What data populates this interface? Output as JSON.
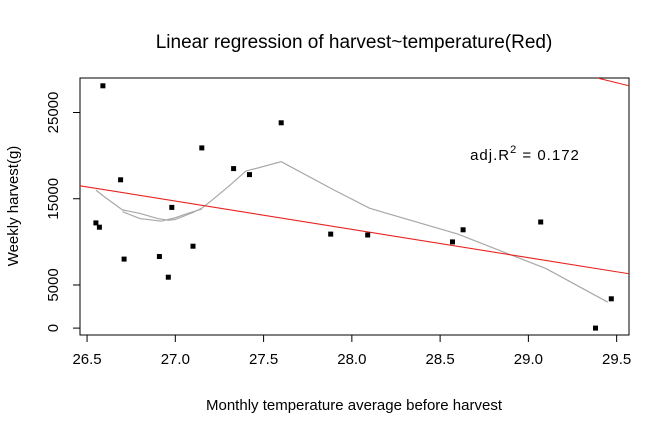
{
  "chart_data": {
    "type": "scatter",
    "title": "Linear regression of harvest~temperature(Red)",
    "xlabel": "Monthly temperature average before harvest",
    "ylabel": "Weekly harvest(g)",
    "xlim": [
      26.46,
      29.57
    ],
    "ylim": [
      -800,
      29000
    ],
    "xticks": [
      "26.5",
      "27.0",
      "27.5",
      "28.0",
      "28.5",
      "29.0",
      "29.5"
    ],
    "yticks": [
      "0",
      "5000",
      "15000",
      "25000"
    ],
    "grid": false,
    "annotation": {
      "prefix": "adj.R",
      "superscript": "2",
      "suffix": " = 0.172",
      "x": 28.67,
      "y": 19500
    },
    "points": [
      {
        "x": 26.55,
        "y": 12200
      },
      {
        "x": 26.57,
        "y": 11700
      },
      {
        "x": 26.59,
        "y": 28100
      },
      {
        "x": 26.69,
        "y": 17200
      },
      {
        "x": 26.71,
        "y": 8000
      },
      {
        "x": 26.91,
        "y": 8300
      },
      {
        "x": 26.96,
        "y": 5900
      },
      {
        "x": 26.98,
        "y": 14000
      },
      {
        "x": 27.1,
        "y": 9500
      },
      {
        "x": 27.15,
        "y": 20900
      },
      {
        "x": 27.33,
        "y": 18500
      },
      {
        "x": 27.42,
        "y": 17800
      },
      {
        "x": 27.6,
        "y": 23800
      },
      {
        "x": 27.88,
        "y": 10900
      },
      {
        "x": 28.09,
        "y": 10800
      },
      {
        "x": 28.57,
        "y": 10000
      },
      {
        "x": 28.63,
        "y": 11400
      },
      {
        "x": 29.07,
        "y": 12300
      },
      {
        "x": 29.38,
        "y": 0
      },
      {
        "x": 29.47,
        "y": 3400
      }
    ],
    "regression": {
      "color": "#e8231f",
      "segments": [
        {
          "x": [
            26.46,
            29.57
          ],
          "y": [
            16500,
            6300
          ]
        },
        {
          "x": [
            29.39,
            29.57
          ],
          "y": [
            29000,
            28100
          ]
        }
      ]
    },
    "lowess": {
      "color": "#a8a8a8",
      "x": [
        26.55,
        26.6,
        26.7,
        26.8,
        26.9,
        26.96,
        27.0,
        27.05,
        27.1,
        27.15,
        27.2,
        27.3,
        27.4,
        27.6,
        27.9,
        28.1,
        28.6,
        29.1,
        29.45
      ],
      "y": [
        16000,
        15200,
        13700,
        13300,
        12700,
        12500,
        12600,
        13000,
        13400,
        13900,
        14700,
        16400,
        18200,
        19300,
        16000,
        13900,
        10900,
        6900,
        3000
      ]
    },
    "lowess_inner": {
      "color": "#a8a8a8",
      "x": [
        26.7,
        26.8,
        26.92,
        27.0,
        27.07,
        27.15
      ],
      "y": [
        13500,
        12700,
        12400,
        12800,
        13300,
        13800
      ]
    }
  }
}
